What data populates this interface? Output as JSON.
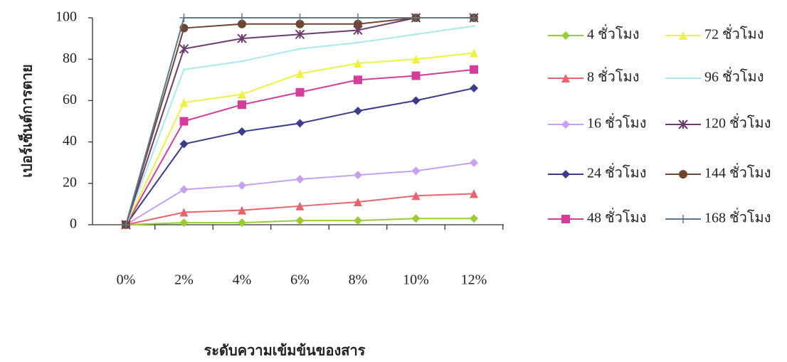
{
  "chart_data": {
    "type": "line",
    "x_label": "ระดับความเข้มข้นของสาร",
    "y_label": "เปอร์เซ็นต์การตาย",
    "categories": [
      "0%",
      "2%",
      "4%",
      "6%",
      "8%",
      "10%",
      "12%"
    ],
    "ylim": [
      0,
      100
    ],
    "yticks": [
      0,
      20,
      40,
      60,
      80,
      100
    ],
    "grid": false,
    "legend": "right",
    "series": [
      {
        "name": "4 ชั่วโมง",
        "color": "#9acd32",
        "marker": "diamond",
        "values": [
          0,
          1,
          1,
          2,
          2,
          3,
          3
        ]
      },
      {
        "name": "8 ชั่วโมง",
        "color": "#e8646e",
        "marker": "triangle",
        "values": [
          0,
          6,
          7,
          9,
          11,
          14,
          15
        ]
      },
      {
        "name": "16 ชั่วโมง",
        "color": "#c8a0f0",
        "marker": "diamond",
        "values": [
          0,
          17,
          19,
          22,
          24,
          26,
          30
        ]
      },
      {
        "name": "24 ชั่วโมง",
        "color": "#3c3c8c",
        "marker": "diamond",
        "values": [
          0,
          39,
          45,
          49,
          55,
          60,
          66
        ]
      },
      {
        "name": "48 ชั่วโมง",
        "color": "#d63c9a",
        "marker": "square",
        "values": [
          0,
          50,
          58,
          64,
          70,
          72,
          75
        ]
      },
      {
        "name": "72 ชั่วโมง",
        "color": "#f0f040",
        "marker": "triangle",
        "values": [
          0,
          59,
          63,
          73,
          78,
          80,
          83
        ]
      },
      {
        "name": "96 ชั่วโมง",
        "color": "#a8e8f0",
        "marker": "none",
        "values": [
          0,
          75,
          79,
          85,
          88,
          92,
          96
        ]
      },
      {
        "name": "120 ชั่วโมง",
        "color": "#6e3c6e",
        "marker": "star",
        "values": [
          0,
          85,
          90,
          92,
          94,
          100,
          100
        ]
      },
      {
        "name": "144 ชั่วโมง",
        "color": "#6e4632",
        "marker": "circle",
        "values": [
          0,
          95,
          97,
          97,
          97,
          100,
          100
        ]
      },
      {
        "name": "168 ชั่วโมง",
        "color": "#5a7890",
        "marker": "plus",
        "values": [
          0,
          100,
          100,
          100,
          100,
          100,
          100
        ]
      }
    ]
  }
}
